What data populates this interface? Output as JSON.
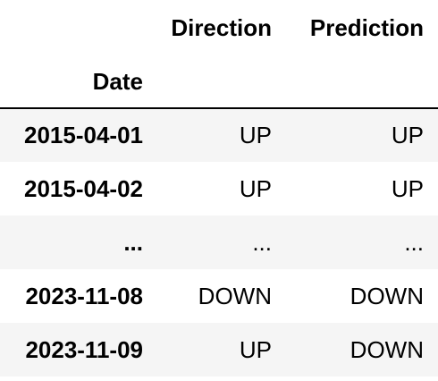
{
  "table": {
    "columns": [
      "Direction",
      "Prediction"
    ],
    "index_name": "Date",
    "rows": [
      {
        "index": "2015-04-01",
        "direction": "UP",
        "prediction": "UP"
      },
      {
        "index": "2015-04-02",
        "direction": "UP",
        "prediction": "UP"
      },
      {
        "index": "...",
        "direction": "...",
        "prediction": "..."
      },
      {
        "index": "2023-11-08",
        "direction": "DOWN",
        "prediction": "DOWN"
      },
      {
        "index": "2023-11-09",
        "direction": "UP",
        "prediction": "DOWN"
      }
    ]
  },
  "colors": {
    "row_stripe": "#f5f5f5",
    "background": "#ffffff",
    "text": "#000000"
  }
}
